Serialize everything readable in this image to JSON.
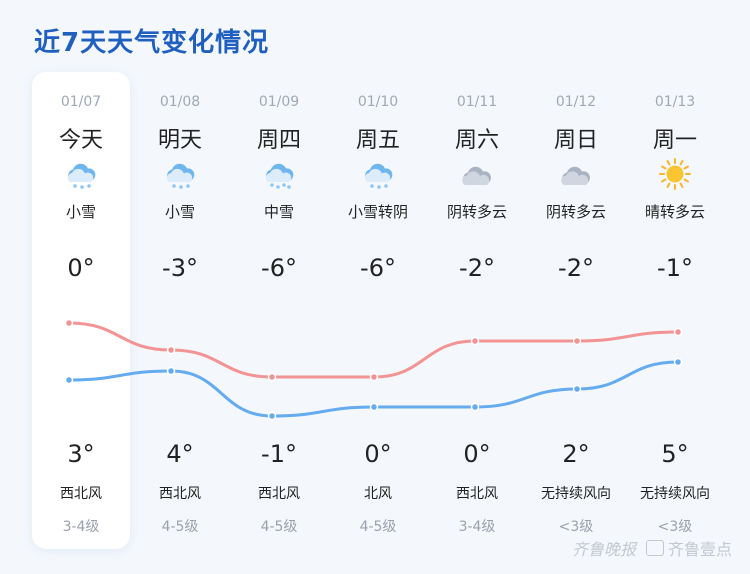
{
  "title": "近7天天气变化情况",
  "days": [
    {
      "date": "01/07",
      "name": "今天",
      "icon": "light-snow-icon",
      "weather": "小雪",
      "high": "0°",
      "low": "3°",
      "wind": "西北风",
      "level": "3-4级"
    },
    {
      "date": "01/08",
      "name": "明天",
      "icon": "light-snow-icon",
      "weather": "小雪",
      "high": "-3°",
      "low": "4°",
      "wind": "西北风",
      "level": "4-5级"
    },
    {
      "date": "01/09",
      "name": "周四",
      "icon": "moderate-snow-icon",
      "weather": "中雪",
      "high": "-6°",
      "low": "-1°",
      "wind": "西北风",
      "level": "4-5级"
    },
    {
      "date": "01/10",
      "name": "周五",
      "icon": "light-snow-icon",
      "weather": "小雪转阴",
      "high": "-6°",
      "low": "0°",
      "wind": "北风",
      "level": "4-5级"
    },
    {
      "date": "01/11",
      "name": "周六",
      "icon": "overcast-cloud-icon",
      "weather": "阴转多云",
      "high": "-2°",
      "low": "0°",
      "wind": "西北风",
      "level": "3-4级"
    },
    {
      "date": "01/12",
      "name": "周日",
      "icon": "overcast-cloud-icon",
      "weather": "阴转多云",
      "high": "-2°",
      "low": "2°",
      "wind": "无持续风向",
      "level": "<3级"
    },
    {
      "date": "01/13",
      "name": "周一",
      "icon": "sunny-icon",
      "weather": "晴转多云",
      "high": "-1°",
      "low": "5°",
      "wind": "无持续风向",
      "level": "<3级"
    }
  ],
  "colors": {
    "high_line": "#f39393",
    "low_line": "#64abef",
    "title": "#1f5fbf"
  },
  "watermark": {
    "logo": "齐鲁晚报",
    "brand": "齐鲁壹点"
  }
}
